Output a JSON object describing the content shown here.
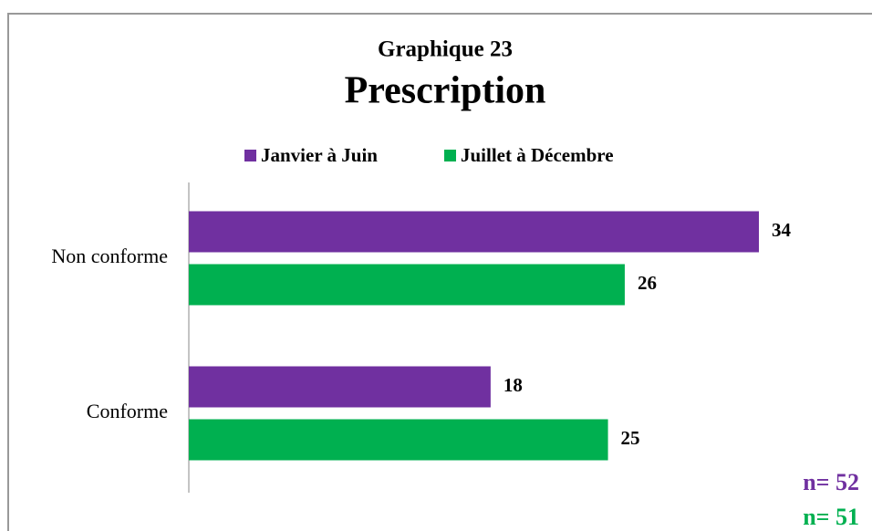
{
  "chart_data": {
    "type": "bar",
    "orientation": "horizontal",
    "title": "Graphique 23",
    "subtitle": "Prescription",
    "categories": [
      "Non conforme",
      "Conforme"
    ],
    "series": [
      {
        "name": "Janvier à Juin",
        "color": "#7030a0",
        "values": [
          34,
          18
        ]
      },
      {
        "name": "Juillet à Décembre",
        "color": "#00b050",
        "values": [
          26,
          25
        ]
      }
    ],
    "legend": "top",
    "annotations": [
      {
        "text": "n= 52",
        "color": "#7030a0"
      },
      {
        "text": "n= 51",
        "color": "#00b050"
      }
    ]
  }
}
